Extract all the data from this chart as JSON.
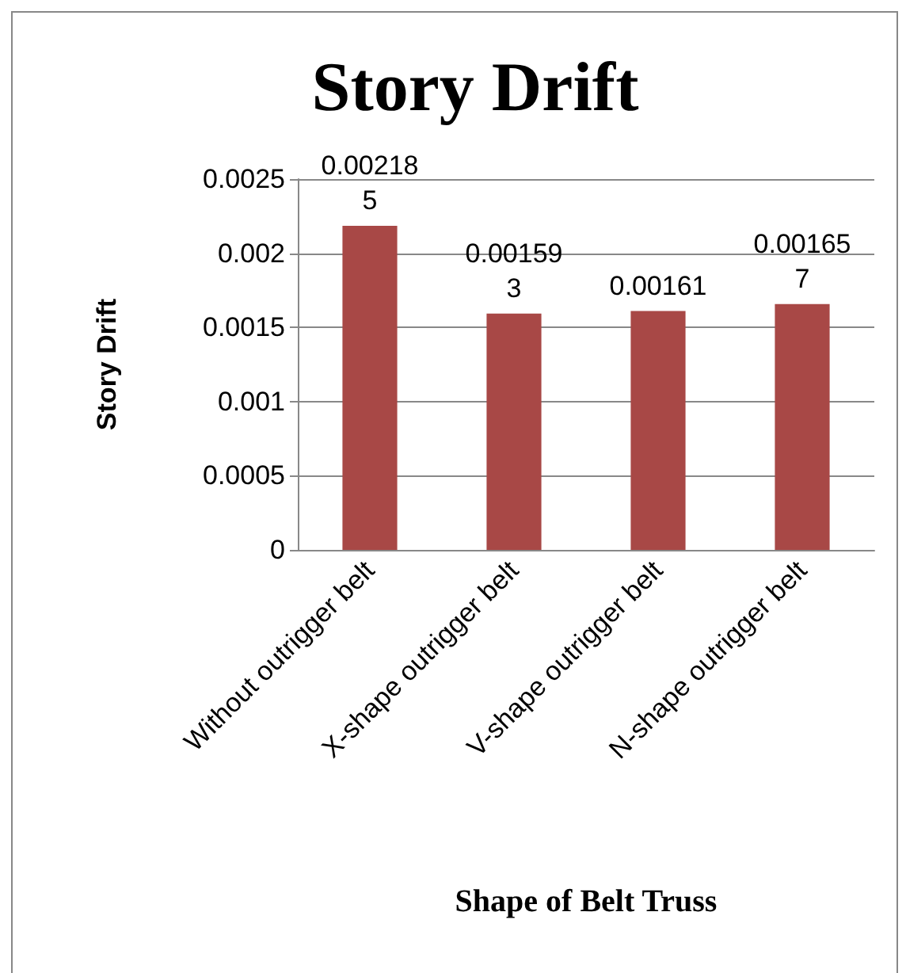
{
  "chart_data": {
    "type": "bar",
    "title": "Story Drift",
    "xlabel": "Shape of Belt Truss",
    "ylabel": "Story Drift",
    "categories": [
      "Without outrigger belt",
      "X-shape outrigger belt",
      "V-shape outrigger belt",
      "N-shape outrigger belt"
    ],
    "values": [
      0.002185,
      0.001593,
      0.00161,
      0.001657
    ],
    "color": "#a84846",
    "ylim": [
      0,
      0.0025
    ],
    "yticks": [
      0,
      0.0005,
      0.001,
      0.0015,
      0.002,
      0.0025
    ],
    "grid": "y",
    "data_labels": true
  }
}
